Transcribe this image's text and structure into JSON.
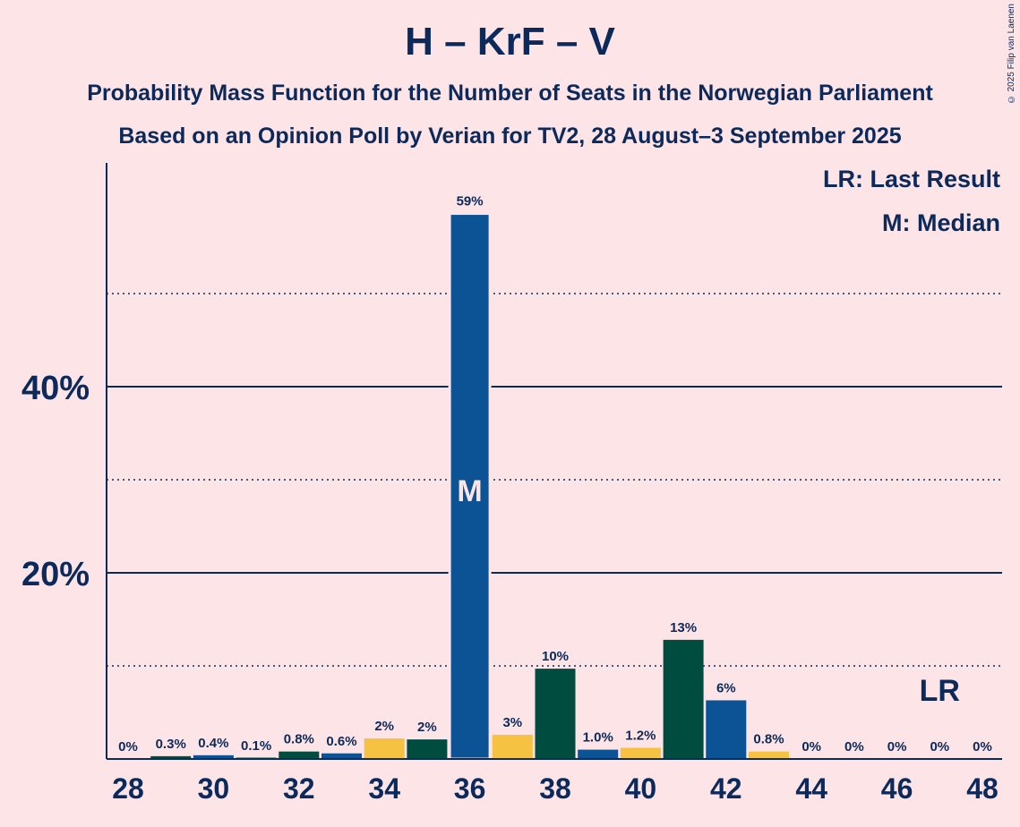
{
  "chart_data": {
    "type": "bar",
    "title": "H – KrF – V",
    "subtitle": [
      "Probability Mass Function for the Number of Seats in the Norwegian Parliament",
      "Based on an Opinion Poll by Verian for TV2, 28 August–3 September 2025"
    ],
    "copyright": "© 2025 Filip van Laenen",
    "legend": [
      "LR: Last Result",
      "M: Median"
    ],
    "legend_position": "top-right",
    "x": [
      28,
      29,
      30,
      31,
      32,
      33,
      34,
      35,
      36,
      37,
      38,
      39,
      40,
      41,
      42,
      43,
      44,
      45,
      46,
      47,
      48
    ],
    "values": [
      0,
      0.3,
      0.4,
      0.1,
      0.8,
      0.6,
      2.2,
      2.1,
      58.6,
      2.6,
      9.7,
      1.0,
      1.2,
      12.8,
      6.3,
      0.8,
      0,
      0,
      0,
      0,
      0
    ],
    "data_labels": [
      "0%",
      "0.3%",
      "0.4%",
      "0.1%",
      "0.8%",
      "0.6%",
      "2%",
      "2%",
      "59%",
      "3%",
      "10%",
      "1.0%",
      "1.2%",
      "13%",
      "6%",
      "0.8%",
      "0%",
      "0%",
      "0%",
      "0%",
      "0%"
    ],
    "bar_colors": [
      "#0b5394",
      "#004d40",
      "#0b5394",
      "#004d40",
      "#004d40",
      "#0b5394",
      "#f5c242",
      "#004d40",
      "#0b5394",
      "#f5c242",
      "#004d40",
      "#0b5394",
      "#f5c242",
      "#004d40",
      "#0b5394",
      "#f5c242",
      "#0b5394",
      "#0b5394",
      "#0b5394",
      "#0b5394",
      "#0b5394"
    ],
    "x_tick_labels": [
      "28",
      "30",
      "32",
      "34",
      "36",
      "38",
      "40",
      "42",
      "44",
      "46",
      "48"
    ],
    "y_tick_labels": [
      "20%",
      "40%"
    ],
    "y_major_ticks": [
      20,
      40
    ],
    "y_minor_ticks": [
      10,
      30,
      50
    ],
    "ylim": [
      0,
      64
    ],
    "median": 36,
    "median_label": "M",
    "last_result": 47,
    "last_result_label": "LR",
    "grid": true,
    "colors": {
      "background": "#fde4e6",
      "text": "#0b2a5b",
      "blue": "#0b5394",
      "green": "#004d40",
      "yellow": "#f5c242"
    }
  }
}
